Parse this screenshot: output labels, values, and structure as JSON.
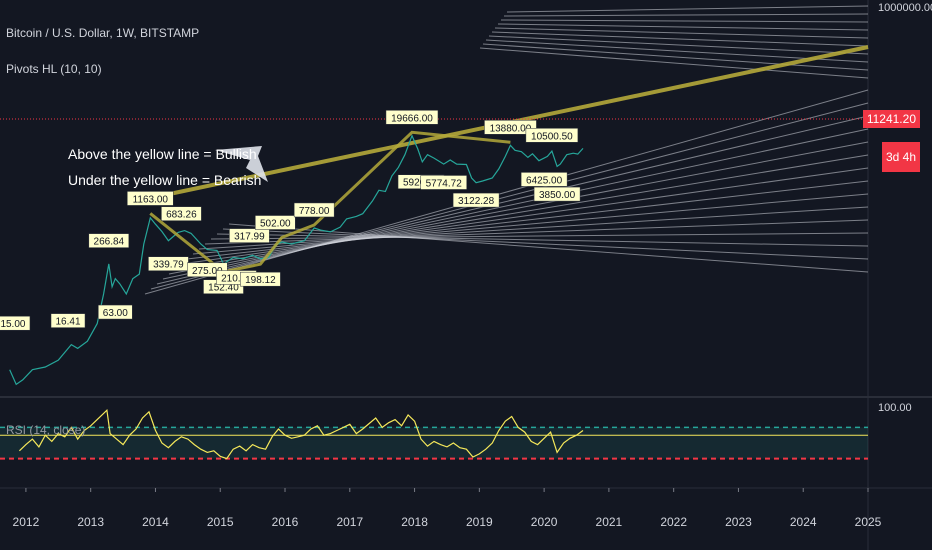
{
  "header": {
    "symbol": "Bitcoin / U.S. Dollar, 1W, BITSTAMP",
    "indicator": "Pivots HL (10, 10)"
  },
  "price_axis": {
    "top_label": "1000000.00",
    "last_price": "11241.20",
    "timer": "3d 4h",
    "last_price_color": "#f23645"
  },
  "rsi_panel": {
    "label": "RSI (14, close)",
    "axis_label": "100.00",
    "rsi_color": "#f5e85a",
    "upper_band": 70,
    "lower_band": 30,
    "mid_line": 60
  },
  "annotations": {
    "line1": "Above the yellow line = Bullish",
    "line2": "Under the yellow line = Bearish"
  },
  "chart_data": {
    "type": "line",
    "title": "Bitcoin / U.S. Dollar, 1W, BITSTAMP",
    "log_scale": true,
    "x_ticks": [
      "2012",
      "2013",
      "2014",
      "2015",
      "2016",
      "2017",
      "2018",
      "2019",
      "2020",
      "2021",
      "2022",
      "2023",
      "2024",
      "2025"
    ],
    "xlim": [
      2011.6,
      2025.0
    ],
    "ylim": [
      2,
      1500000
    ],
    "grid": false,
    "series": [
      {
        "name": "",
        "color": "#26a69a",
        "points": [
          [
            2011.75,
            5.0
          ],
          [
            2011.85,
            3.0
          ],
          [
            2011.95,
            3.5
          ],
          [
            2012.1,
            5.0
          ],
          [
            2012.3,
            5.5
          ],
          [
            2012.5,
            7.0
          ],
          [
            2012.7,
            12.0
          ],
          [
            2012.8,
            10.5
          ],
          [
            2012.95,
            13.5
          ],
          [
            2013.1,
            25.0
          ],
          [
            2013.2,
            70.0
          ],
          [
            2013.28,
            200.0
          ],
          [
            2013.33,
            90.0
          ],
          [
            2013.38,
            120.0
          ],
          [
            2013.45,
            100.0
          ],
          [
            2013.55,
            70.0
          ],
          [
            2013.65,
            120.0
          ],
          [
            2013.75,
            140.0
          ],
          [
            2013.82,
            400.0
          ],
          [
            2013.92,
            1000.0
          ],
          [
            2014.0,
            800.0
          ],
          [
            2014.1,
            620.0
          ],
          [
            2014.2,
            450.0
          ],
          [
            2014.35,
            600.0
          ],
          [
            2014.45,
            640.0
          ],
          [
            2014.55,
            580.0
          ],
          [
            2014.7,
            400.0
          ],
          [
            2014.8,
            330.0
          ],
          [
            2014.95,
            320.0
          ],
          [
            2015.05,
            200.0
          ],
          [
            2015.2,
            250.0
          ],
          [
            2015.35,
            240.0
          ],
          [
            2015.5,
            270.0
          ],
          [
            2015.62,
            240.0
          ],
          [
            2015.75,
            250.0
          ],
          [
            2015.85,
            380.0
          ],
          [
            2015.95,
            430.0
          ],
          [
            2016.1,
            400.0
          ],
          [
            2016.3,
            450.0
          ],
          [
            2016.45,
            700.0
          ],
          [
            2016.55,
            650.0
          ],
          [
            2016.7,
            610.0
          ],
          [
            2016.85,
            720.0
          ],
          [
            2016.95,
            960.0
          ],
          [
            2017.1,
            1050.0
          ],
          [
            2017.2,
            1150.0
          ],
          [
            2017.35,
            1800.0
          ],
          [
            2017.45,
            2600.0
          ],
          [
            2017.55,
            2500.0
          ],
          [
            2017.65,
            4300.0
          ],
          [
            2017.75,
            5800.0
          ],
          [
            2017.85,
            9000.0
          ],
          [
            2017.96,
            17500.0
          ],
          [
            2018.05,
            11000.0
          ],
          [
            2018.12,
            7000.0
          ],
          [
            2018.2,
            9000.0
          ],
          [
            2018.3,
            8000.0
          ],
          [
            2018.45,
            6500.0
          ],
          [
            2018.55,
            7500.0
          ],
          [
            2018.65,
            6500.0
          ],
          [
            2018.8,
            6400.0
          ],
          [
            2018.88,
            4000.0
          ],
          [
            2018.95,
            3400.0
          ],
          [
            2019.05,
            3600.0
          ],
          [
            2019.2,
            4000.0
          ],
          [
            2019.3,
            5500.0
          ],
          [
            2019.4,
            8500.0
          ],
          [
            2019.48,
            12500.0
          ],
          [
            2019.55,
            10500.0
          ],
          [
            2019.65,
            10000.0
          ],
          [
            2019.75,
            8200.0
          ],
          [
            2019.82,
            9300.0
          ],
          [
            2019.92,
            7300.0
          ],
          [
            2020.05,
            8500.0
          ],
          [
            2020.12,
            10200.0
          ],
          [
            2020.2,
            6000.0
          ],
          [
            2020.25,
            6500.0
          ],
          [
            2020.35,
            9000.0
          ],
          [
            2020.45,
            9500.0
          ],
          [
            2020.52,
            9200.0
          ],
          [
            2020.6,
            11241.2
          ]
        ]
      },
      {
        "name": "",
        "color": "#b4a93a",
        "points": [
          [
            2013.92,
            1163.0
          ],
          [
            2015.05,
            152.0
          ],
          [
            2015.62,
            198.12
          ],
          [
            2015.95,
            502.0
          ],
          [
            2016.45,
            778.0
          ],
          [
            2017.96,
            19666.0
          ],
          [
            2019.48,
            13880.0
          ]
        ]
      }
    ],
    "pivot_labels": [
      {
        "text": "15.00",
        "x": 2011.8,
        "y": 15.0,
        "dir": "high"
      },
      {
        "text": "16.41",
        "x": 2012.65,
        "y": 16.41,
        "dir": "high"
      },
      {
        "text": "266.84",
        "x": 2013.28,
        "y": 266.84,
        "dir": "high"
      },
      {
        "text": "63.00",
        "x": 2013.38,
        "y": 63.0,
        "dir": "low"
      },
      {
        "text": "1163.00",
        "x": 2013.92,
        "y": 1163.0,
        "dir": "high"
      },
      {
        "text": "683.26",
        "x": 2014.4,
        "y": 683.26,
        "dir": "high"
      },
      {
        "text": "339.79",
        "x": 2014.2,
        "y": 339.79,
        "dir": "low"
      },
      {
        "text": "275.00",
        "x": 2014.8,
        "y": 275.0,
        "dir": "low"
      },
      {
        "text": "152.40",
        "x": 2015.05,
        "y": 152.4,
        "dir": "low"
      },
      {
        "text": "210.00",
        "x": 2015.25,
        "y": 210.0,
        "dir": "low"
      },
      {
        "text": "198.12",
        "x": 2015.62,
        "y": 198.12,
        "dir": "low"
      },
      {
        "text": "317.99",
        "x": 2015.45,
        "y": 317.99,
        "dir": "high"
      },
      {
        "text": "502.00",
        "x": 2015.85,
        "y": 502.0,
        "dir": "high"
      },
      {
        "text": "778.00",
        "x": 2016.45,
        "y": 778.0,
        "dir": "high"
      },
      {
        "text": "19666.00",
        "x": 2017.96,
        "y": 19666.0,
        "dir": "high"
      },
      {
        "text": "5920.72",
        "x": 2018.1,
        "y": 5920.72,
        "dir": "low"
      },
      {
        "text": "5774.72",
        "x": 2018.45,
        "y": 5774.72,
        "dir": "low"
      },
      {
        "text": "3122.28",
        "x": 2018.95,
        "y": 3122.28,
        "dir": "low"
      },
      {
        "text": "13880.00",
        "x": 2019.48,
        "y": 13880.0,
        "dir": "high"
      },
      {
        "text": "10500.50",
        "x": 2020.12,
        "y": 10500.5,
        "dir": "high"
      },
      {
        "text": "6425.00",
        "x": 2020.0,
        "y": 6425.0,
        "dir": "low"
      },
      {
        "text": "3850.00",
        "x": 2020.2,
        "y": 3850.0,
        "dir": "low"
      }
    ],
    "rsi": {
      "ylim": [
        0,
        100
      ],
      "points": [
        [
          2011.9,
          40
        ],
        [
          2012.0,
          48
        ],
        [
          2012.1,
          55
        ],
        [
          2012.2,
          45
        ],
        [
          2012.3,
          60
        ],
        [
          2012.4,
          52
        ],
        [
          2012.5,
          62
        ],
        [
          2012.6,
          58
        ],
        [
          2012.7,
          70
        ],
        [
          2012.8,
          55
        ],
        [
          2012.9,
          66
        ],
        [
          2013.0,
          72
        ],
        [
          2013.1,
          80
        ],
        [
          2013.2,
          88
        ],
        [
          2013.25,
          92
        ],
        [
          2013.3,
          62
        ],
        [
          2013.4,
          55
        ],
        [
          2013.5,
          48
        ],
        [
          2013.6,
          60
        ],
        [
          2013.7,
          68
        ],
        [
          2013.8,
          82
        ],
        [
          2013.9,
          90
        ],
        [
          2014.0,
          66
        ],
        [
          2014.1,
          50
        ],
        [
          2014.2,
          44
        ],
        [
          2014.3,
          52
        ],
        [
          2014.4,
          58
        ],
        [
          2014.5,
          55
        ],
        [
          2014.6,
          48
        ],
        [
          2014.7,
          42
        ],
        [
          2014.8,
          38
        ],
        [
          2014.9,
          40
        ],
        [
          2015.0,
          33
        ],
        [
          2015.1,
          30
        ],
        [
          2015.2,
          42
        ],
        [
          2015.3,
          46
        ],
        [
          2015.4,
          40
        ],
        [
          2015.5,
          48
        ],
        [
          2015.6,
          44
        ],
        [
          2015.7,
          42
        ],
        [
          2015.8,
          58
        ],
        [
          2015.9,
          68
        ],
        [
          2016.0,
          60
        ],
        [
          2016.1,
          56
        ],
        [
          2016.2,
          58
        ],
        [
          2016.3,
          60
        ],
        [
          2016.4,
          68
        ],
        [
          2016.5,
          72
        ],
        [
          2016.6,
          60
        ],
        [
          2016.7,
          62
        ],
        [
          2016.8,
          66
        ],
        [
          2016.9,
          70
        ],
        [
          2017.0,
          74
        ],
        [
          2017.1,
          62
        ],
        [
          2017.2,
          68
        ],
        [
          2017.3,
          75
        ],
        [
          2017.4,
          82
        ],
        [
          2017.5,
          70
        ],
        [
          2017.6,
          76
        ],
        [
          2017.7,
          80
        ],
        [
          2017.8,
          72
        ],
        [
          2017.9,
          86
        ],
        [
          2018.0,
          78
        ],
        [
          2018.1,
          55
        ],
        [
          2018.2,
          46
        ],
        [
          2018.3,
          52
        ],
        [
          2018.4,
          48
        ],
        [
          2018.5,
          45
        ],
        [
          2018.6,
          50
        ],
        [
          2018.7,
          44
        ],
        [
          2018.8,
          42
        ],
        [
          2018.9,
          32
        ],
        [
          2019.0,
          36
        ],
        [
          2019.1,
          42
        ],
        [
          2019.2,
          50
        ],
        [
          2019.3,
          66
        ],
        [
          2019.4,
          78
        ],
        [
          2019.5,
          84
        ],
        [
          2019.6,
          70
        ],
        [
          2019.7,
          64
        ],
        [
          2019.8,
          52
        ],
        [
          2019.9,
          48
        ],
        [
          2020.0,
          56
        ],
        [
          2020.1,
          64
        ],
        [
          2020.2,
          38
        ],
        [
          2020.3,
          50
        ],
        [
          2020.4,
          56
        ],
        [
          2020.5,
          60
        ],
        [
          2020.6,
          66
        ]
      ]
    }
  }
}
